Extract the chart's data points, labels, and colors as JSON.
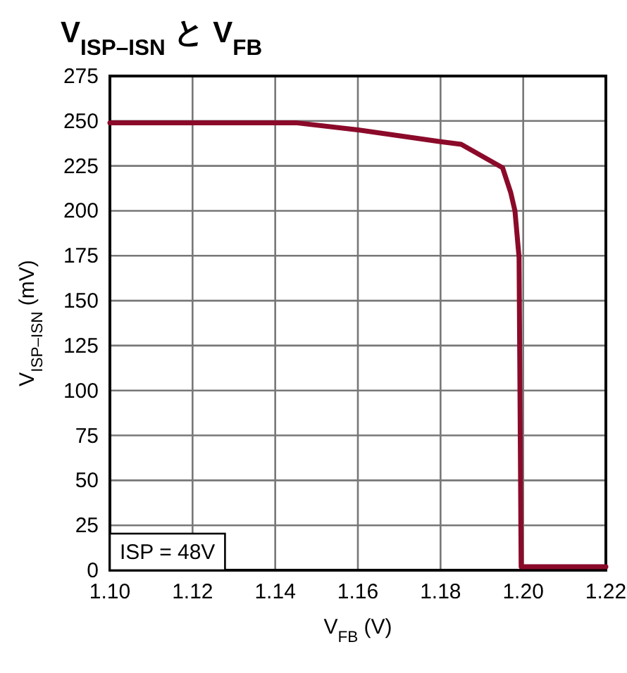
{
  "chart_data": {
    "type": "line",
    "title": "V$_{ISP–ISN}$ と V$_{FB}$",
    "xlabel": "V$_{FB}$ (V)",
    "ylabel": "V$_{ISP–ISN}$ (mV)",
    "annotations": [
      "ISP = 48V"
    ],
    "series": [
      {
        "color": "#8b0a2a",
        "x": [
          1.1,
          1.145,
          1.16,
          1.18,
          1.185,
          1.195,
          1.197,
          1.198,
          1.199,
          1.1995,
          1.2,
          1.22
        ],
        "values": [
          249,
          249,
          245,
          238.5,
          237,
          224,
          210,
          200,
          174,
          2,
          2,
          2
        ]
      }
    ],
    "xlim": [
      1.1,
      1.22
    ],
    "ylim": [
      0,
      275
    ],
    "xticks": [
      {
        "value": 1.1,
        "label": "1.10"
      },
      {
        "value": 1.12,
        "label": "1.12"
      },
      {
        "value": 1.14,
        "label": "1.14"
      },
      {
        "value": 1.16,
        "label": "1.16"
      },
      {
        "value": 1.18,
        "label": "1.18"
      },
      {
        "value": 1.2,
        "label": "1.20"
      },
      {
        "value": 1.22,
        "label": "1.22"
      }
    ],
    "yticks": [
      0,
      25,
      50,
      75,
      100,
      125,
      150,
      175,
      200,
      225,
      250,
      275
    ],
    "grid": true,
    "line_style": "solid"
  }
}
